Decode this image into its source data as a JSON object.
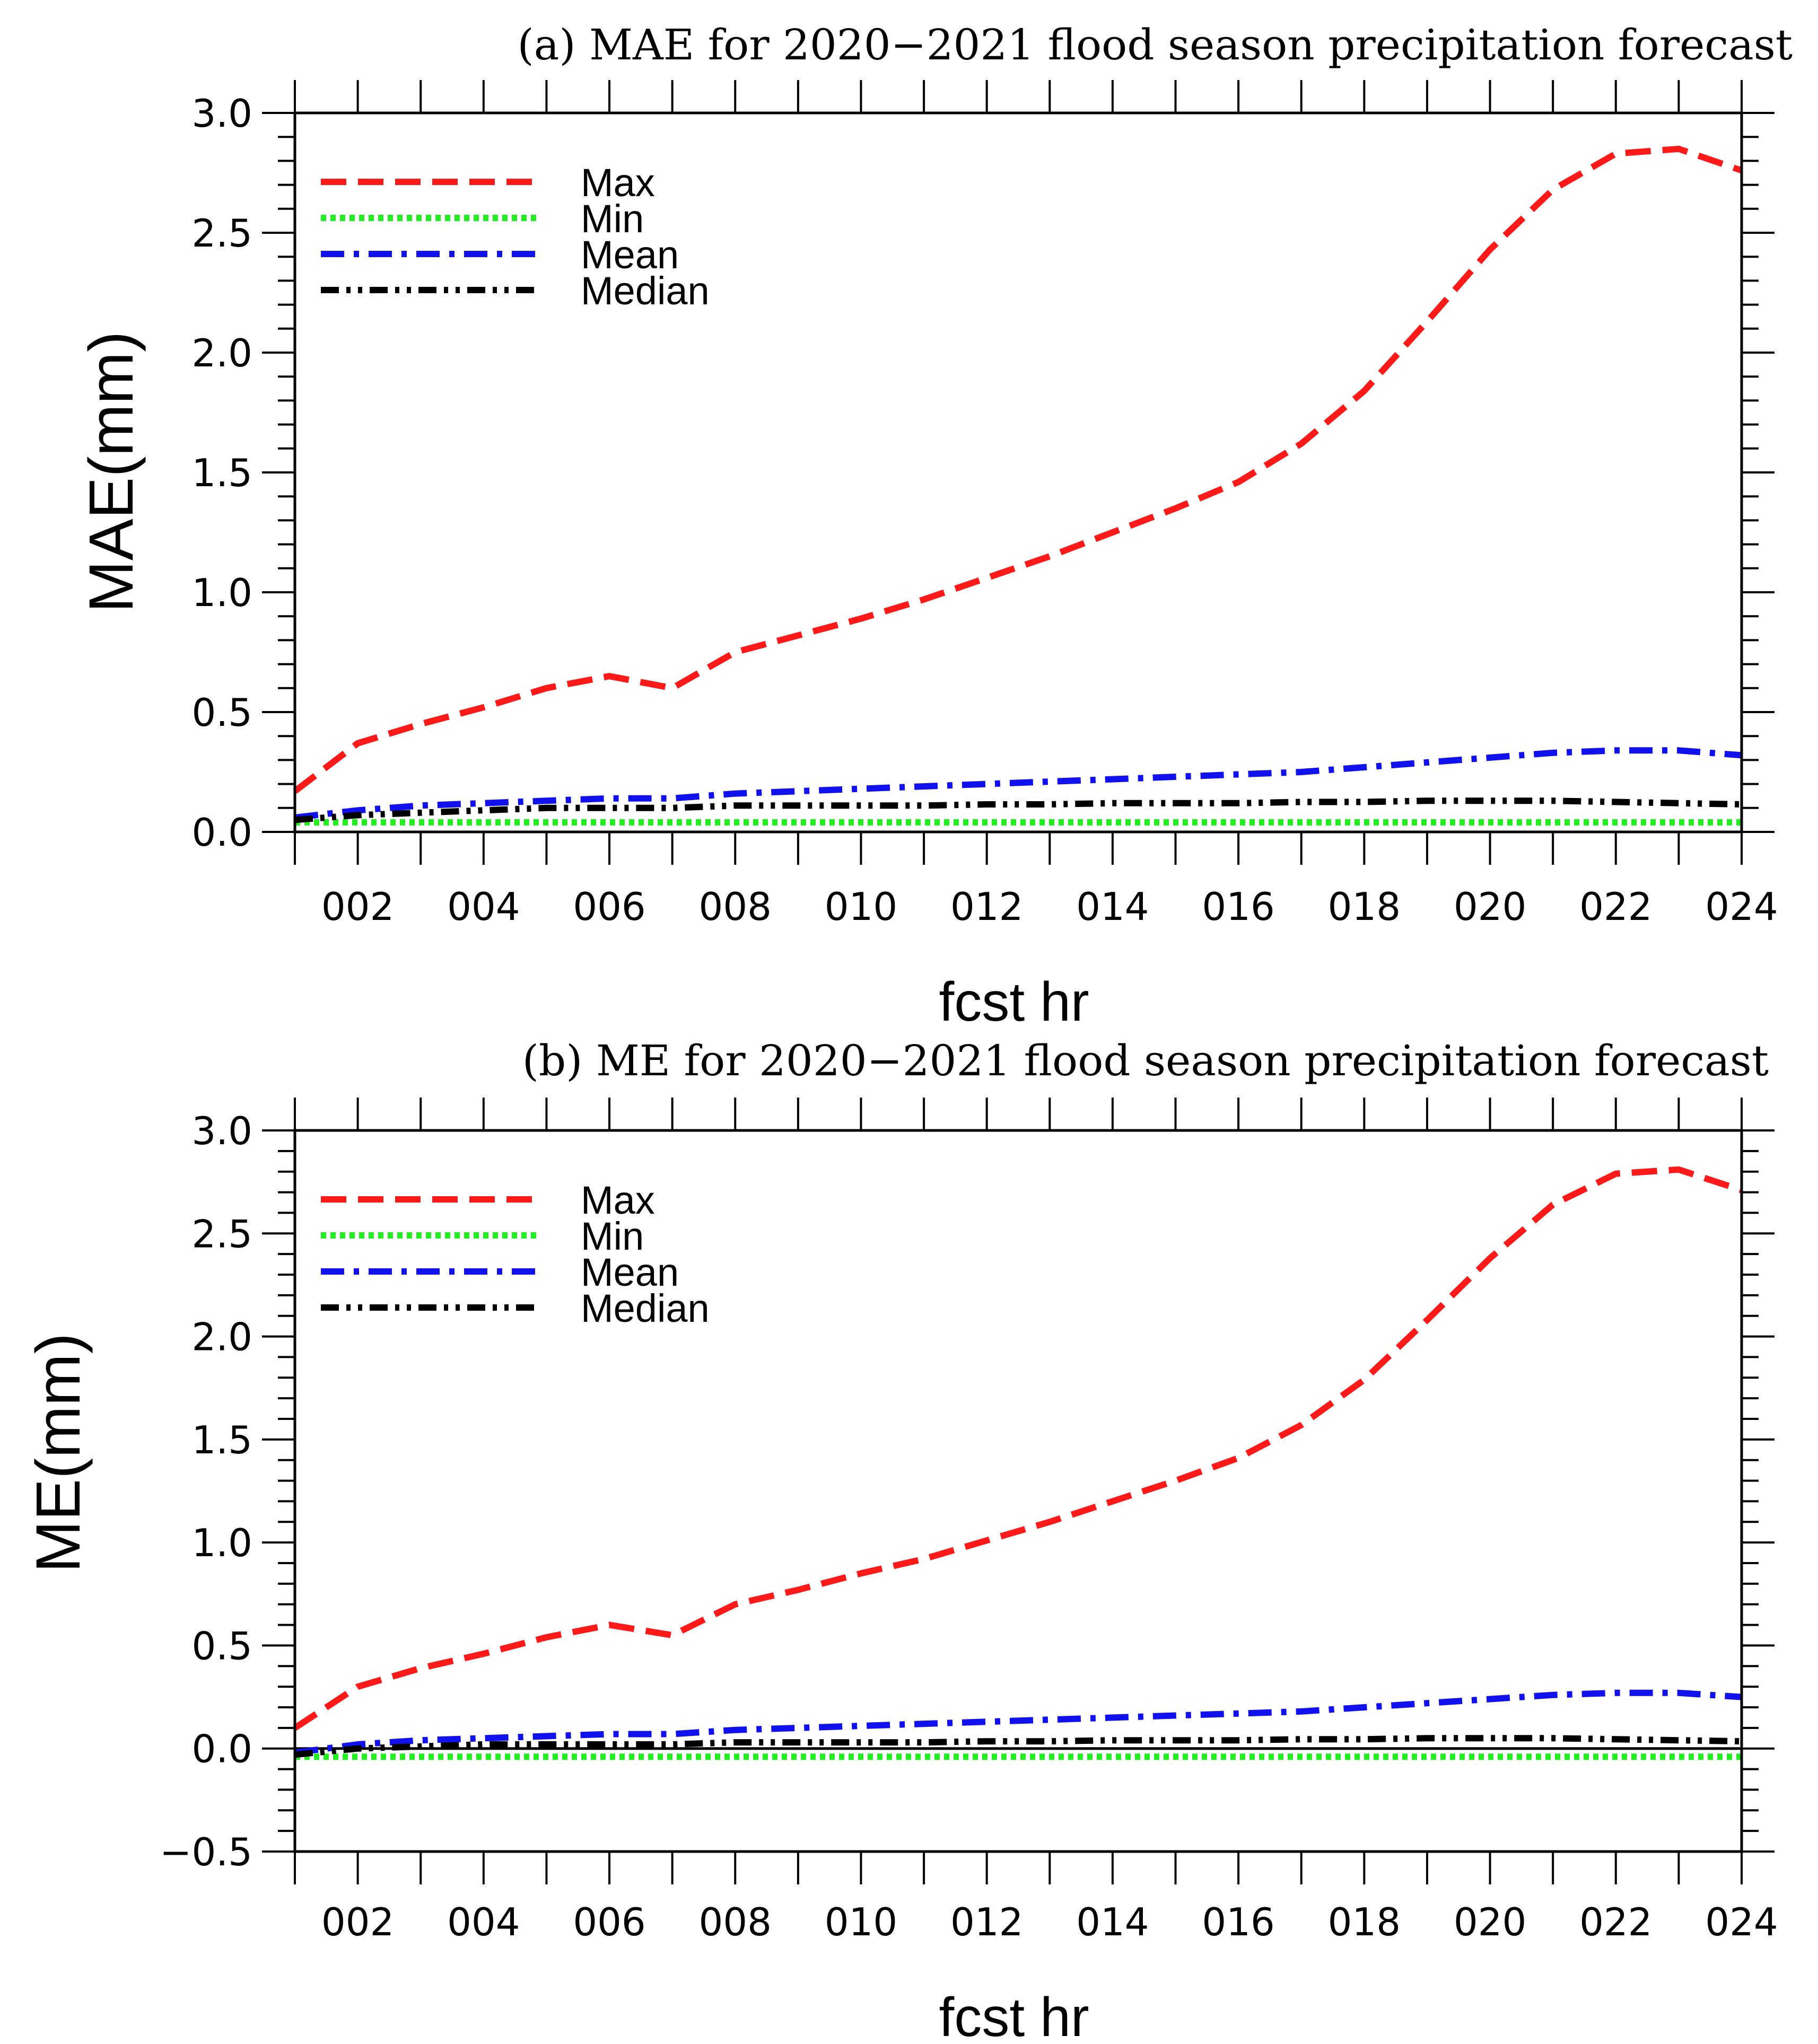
{
  "chart_data": [
    {
      "type": "line",
      "title": "(a) MAE for 2020−2021 flood season precipitation forecast",
      "xlabel": "fcst hr",
      "ylabel": "MAE(mm)",
      "x": [
        1,
        2,
        3,
        4,
        5,
        6,
        7,
        8,
        9,
        10,
        11,
        12,
        13,
        14,
        15,
        16,
        17,
        18,
        19,
        20,
        21,
        22,
        23,
        24
      ],
      "xticks": [
        2,
        4,
        6,
        8,
        10,
        12,
        14,
        16,
        18,
        20,
        22,
        24
      ],
      "xtick_labels": [
        "002",
        "004",
        "006",
        "008",
        "010",
        "012",
        "014",
        "016",
        "018",
        "020",
        "022",
        "024"
      ],
      "xlim": [
        1,
        24
      ],
      "ylim": [
        0,
        3.0
      ],
      "yticks": [
        0,
        0.5,
        1.0,
        1.5,
        2.0,
        2.5,
        3.0
      ],
      "ytick_labels": [
        "0.0",
        "0.5",
        "1.0",
        "1.5",
        "2.0",
        "2.5",
        "3.0"
      ],
      "legend_position": "top-left",
      "series": [
        {
          "name": "Max",
          "color": "#ff1a1a",
          "style": "dash",
          "values": [
            0.17,
            0.37,
            0.45,
            0.52,
            0.6,
            0.65,
            0.6,
            0.75,
            0.82,
            0.89,
            0.97,
            1.06,
            1.15,
            1.25,
            1.35,
            1.46,
            1.62,
            1.84,
            2.13,
            2.43,
            2.68,
            2.83,
            2.85,
            2.76
          ]
        },
        {
          "name": "Min",
          "color": "#22ee22",
          "style": "dot",
          "values": [
            0.04,
            0.04,
            0.04,
            0.04,
            0.04,
            0.04,
            0.04,
            0.04,
            0.04,
            0.04,
            0.04,
            0.04,
            0.04,
            0.04,
            0.04,
            0.04,
            0.04,
            0.04,
            0.04,
            0.04,
            0.04,
            0.04,
            0.04,
            0.04
          ]
        },
        {
          "name": "Mean",
          "color": "#1111ee",
          "style": "dashdot",
          "values": [
            0.06,
            0.09,
            0.11,
            0.12,
            0.13,
            0.14,
            0.14,
            0.16,
            0.17,
            0.18,
            0.19,
            0.2,
            0.21,
            0.22,
            0.23,
            0.24,
            0.25,
            0.27,
            0.29,
            0.31,
            0.33,
            0.34,
            0.34,
            0.32
          ]
        },
        {
          "name": "Median",
          "color": "#000000",
          "style": "dashdotdot",
          "values": [
            0.05,
            0.07,
            0.08,
            0.09,
            0.1,
            0.1,
            0.1,
            0.11,
            0.11,
            0.11,
            0.11,
            0.115,
            0.115,
            0.12,
            0.12,
            0.12,
            0.125,
            0.125,
            0.13,
            0.13,
            0.13,
            0.125,
            0.12,
            0.115
          ]
        }
      ]
    },
    {
      "type": "line",
      "title": "(b) ME for 2020−2021 flood season precipitation forecast",
      "xlabel": "fcst hr",
      "ylabel": "ME(mm)",
      "x": [
        1,
        2,
        3,
        4,
        5,
        6,
        7,
        8,
        9,
        10,
        11,
        12,
        13,
        14,
        15,
        16,
        17,
        18,
        19,
        20,
        21,
        22,
        23,
        24
      ],
      "xticks": [
        2,
        4,
        6,
        8,
        10,
        12,
        14,
        16,
        18,
        20,
        22,
        24
      ],
      "xtick_labels": [
        "002",
        "004",
        "006",
        "008",
        "010",
        "012",
        "014",
        "016",
        "018",
        "020",
        "022",
        "024"
      ],
      "xlim": [
        1,
        24
      ],
      "ylim": [
        -0.5,
        3.0
      ],
      "yticks": [
        -0.5,
        0,
        0.5,
        1.0,
        1.5,
        2.0,
        2.5,
        3.0
      ],
      "ytick_labels": [
        "−0.5",
        "0.0",
        "0.5",
        "1.0",
        "1.5",
        "2.0",
        "2.5",
        "3.0"
      ],
      "zero_line": true,
      "legend_position": "top-left",
      "series": [
        {
          "name": "Max",
          "color": "#ff1a1a",
          "style": "dash",
          "values": [
            0.1,
            0.3,
            0.39,
            0.46,
            0.54,
            0.6,
            0.55,
            0.7,
            0.77,
            0.85,
            0.92,
            1.01,
            1.1,
            1.2,
            1.3,
            1.41,
            1.57,
            1.79,
            2.08,
            2.38,
            2.64,
            2.79,
            2.81,
            2.71
          ]
        },
        {
          "name": "Min",
          "color": "#22ee22",
          "style": "dot",
          "values": [
            -0.04,
            -0.04,
            -0.04,
            -0.04,
            -0.04,
            -0.04,
            -0.04,
            -0.04,
            -0.04,
            -0.04,
            -0.04,
            -0.04,
            -0.04,
            -0.04,
            -0.04,
            -0.04,
            -0.04,
            -0.04,
            -0.04,
            -0.04,
            -0.04,
            -0.04,
            -0.04,
            -0.04
          ]
        },
        {
          "name": "Mean",
          "color": "#1111ee",
          "style": "dashdot",
          "values": [
            -0.02,
            0.02,
            0.04,
            0.05,
            0.06,
            0.07,
            0.07,
            0.09,
            0.1,
            0.11,
            0.12,
            0.13,
            0.14,
            0.15,
            0.16,
            0.17,
            0.18,
            0.2,
            0.22,
            0.24,
            0.26,
            0.27,
            0.27,
            0.25
          ]
        },
        {
          "name": "Median",
          "color": "#000000",
          "style": "dashdotdot",
          "values": [
            -0.03,
            0.0,
            0.01,
            0.02,
            0.02,
            0.02,
            0.02,
            0.03,
            0.03,
            0.03,
            0.03,
            0.035,
            0.035,
            0.04,
            0.04,
            0.04,
            0.045,
            0.045,
            0.05,
            0.05,
            0.05,
            0.045,
            0.04,
            0.035
          ]
        }
      ]
    }
  ]
}
